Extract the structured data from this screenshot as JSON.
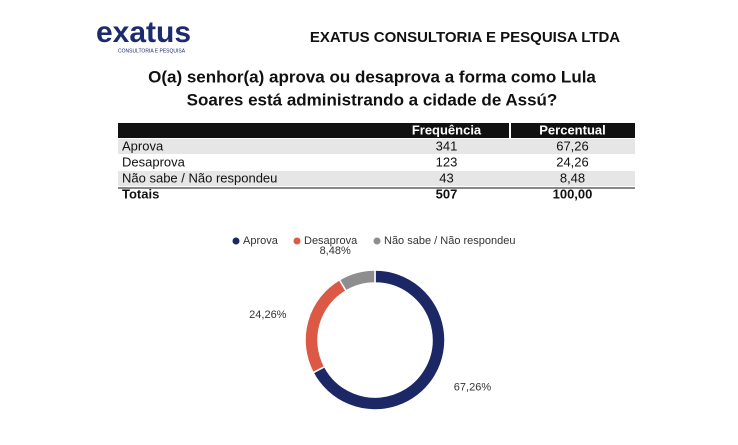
{
  "header": {
    "logo": "exatus",
    "logo_sub": "CONSULTORIA E PESQUISA",
    "company": "EXATUS CONSULTORIA E PESQUISA LTDA",
    "question_lines": [
      "O(a) senhor(a) aprova ou desaprova a forma como Lula",
      "Soares está administrando a cidade de Assú?"
    ]
  },
  "table": {
    "columns": [
      "",
      "Frequência",
      "Percentual"
    ],
    "rows": [
      [
        "Aprova",
        "341",
        "67,26"
      ],
      [
        "Desaprova",
        "123",
        "24,26"
      ],
      [
        "Não sabe / Não respondeu",
        "43",
        "8,48"
      ],
      [
        "Totais",
        "507",
        "100,00"
      ]
    ]
  },
  "chart_data": {
    "type": "donut",
    "categories": [
      "Aprova",
      "Desaprova",
      "Não sabe / Não respondeu"
    ],
    "values": [
      67.26,
      24.26,
      8.48
    ],
    "value_labels": [
      "67,26%",
      "24,26%",
      "8,48%"
    ],
    "colors": [
      "#1c2766",
      "#dc5a45",
      "#8e8e8e"
    ],
    "legend": "top"
  }
}
